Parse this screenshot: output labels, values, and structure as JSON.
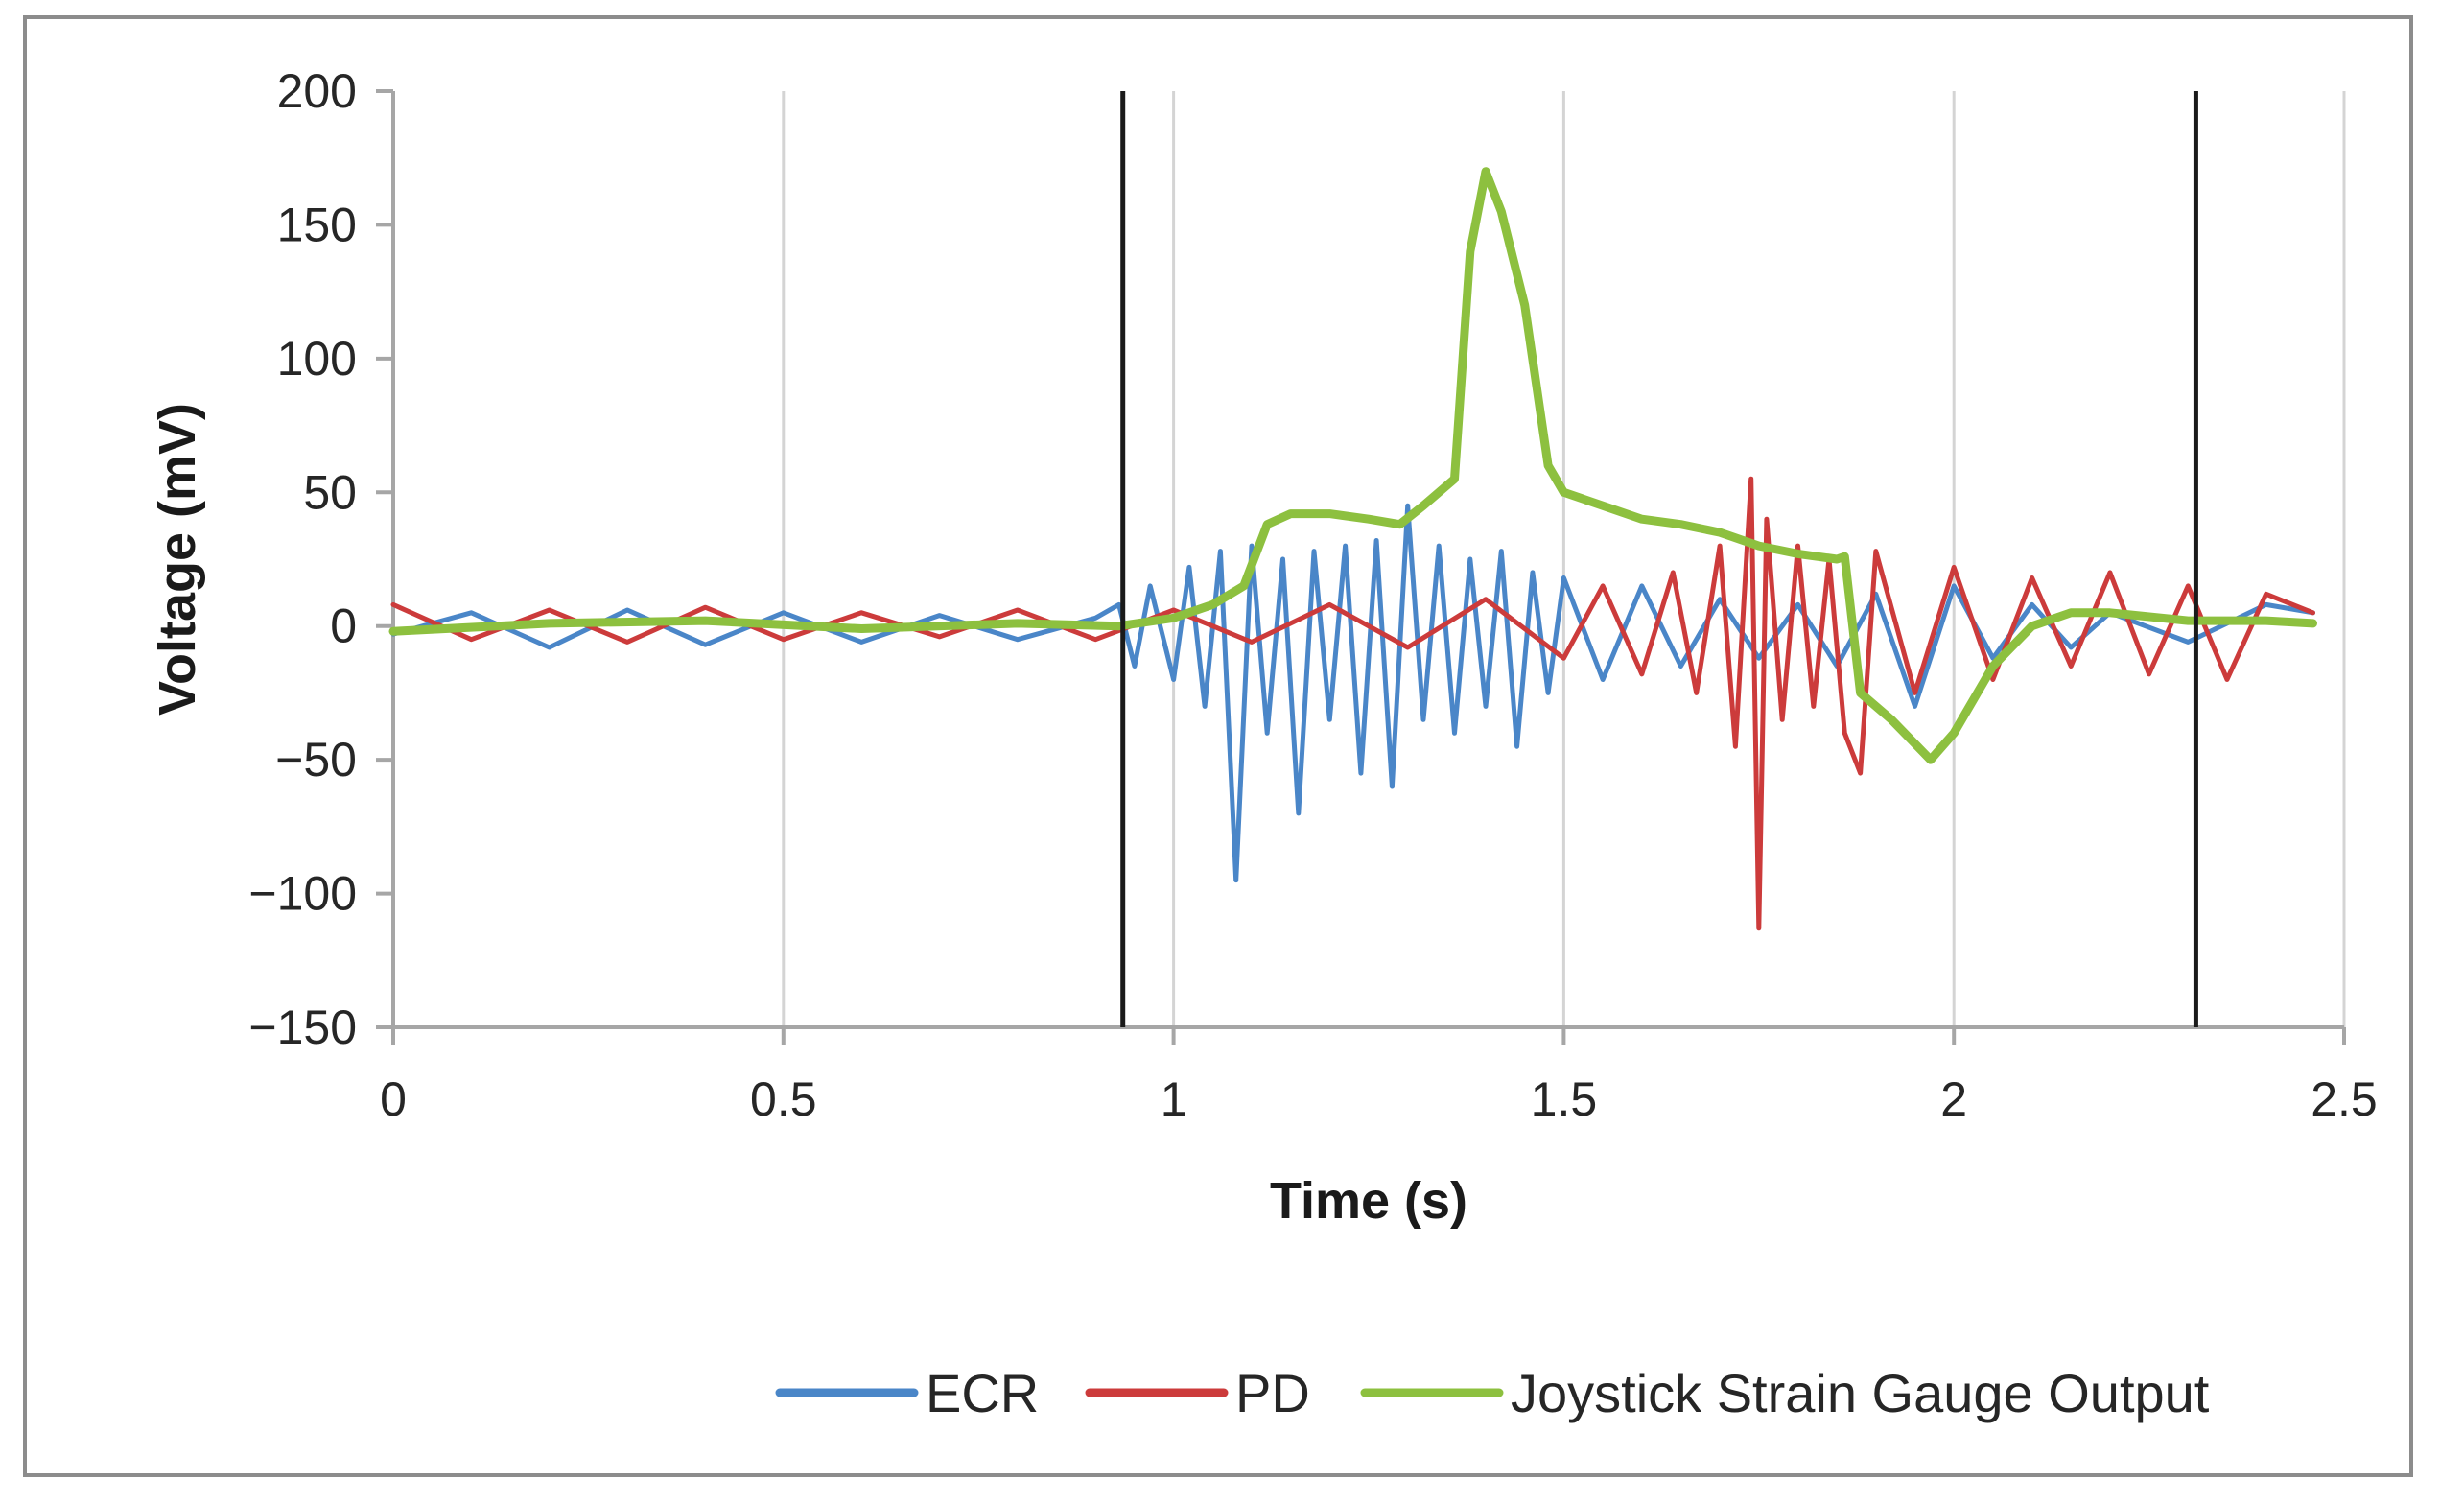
{
  "chart_data": {
    "type": "line",
    "xlabel": "Time (s)",
    "ylabel": "Voltage (mV)",
    "xlim": [
      0,
      2.5
    ],
    "ylim": [
      -150,
      200
    ],
    "x_ticks": [
      0,
      0.5,
      1,
      1.5,
      2,
      2.5
    ],
    "x_tick_labels": [
      "0",
      "0.5",
      "1",
      "1.5",
      "2",
      "2.5"
    ],
    "y_ticks": [
      -150,
      -100,
      -50,
      0,
      50,
      100,
      150,
      200
    ],
    "y_tick_labels": [
      "−150",
      "−100",
      "−50",
      "0",
      "50",
      "100",
      "150",
      "200"
    ],
    "grid": "vertical",
    "legend_position": "bottom-right",
    "markers": [
      {
        "name": "marker-line-start",
        "x": 0.935
      },
      {
        "name": "marker-line-end",
        "x": 2.31
      }
    ],
    "series": [
      {
        "name": "ECR",
        "color": "#4a86c8",
        "x": [
          0,
          0.1,
          0.2,
          0.3,
          0.4,
          0.5,
          0.6,
          0.7,
          0.8,
          0.9,
          0.93,
          0.95,
          0.97,
          1.0,
          1.02,
          1.04,
          1.06,
          1.08,
          1.1,
          1.12,
          1.14,
          1.16,
          1.18,
          1.2,
          1.22,
          1.24,
          1.26,
          1.28,
          1.3,
          1.32,
          1.34,
          1.36,
          1.38,
          1.4,
          1.42,
          1.44,
          1.46,
          1.48,
          1.5,
          1.55,
          1.6,
          1.65,
          1.7,
          1.75,
          1.8,
          1.85,
          1.9,
          1.95,
          2.0,
          2.05,
          2.1,
          2.15,
          2.2,
          2.3,
          2.4,
          2.46
        ],
        "y": [
          -3,
          5,
          -8,
          6,
          -7,
          5,
          -6,
          4,
          -5,
          3,
          8,
          -15,
          15,
          -20,
          22,
          -30,
          28,
          -95,
          30,
          -40,
          25,
          -70,
          28,
          -35,
          30,
          -55,
          32,
          -60,
          45,
          -35,
          30,
          -40,
          25,
          -30,
          28,
          -45,
          20,
          -25,
          18,
          -20,
          15,
          -15,
          10,
          -12,
          8,
          -15,
          12,
          -30,
          15,
          -12,
          8,
          -8,
          5,
          -6,
          8,
          5
        ]
      },
      {
        "name": "PD",
        "color": "#cc3b3b",
        "x": [
          0,
          0.1,
          0.2,
          0.3,
          0.4,
          0.5,
          0.6,
          0.7,
          0.8,
          0.9,
          1.0,
          1.1,
          1.2,
          1.3,
          1.4,
          1.5,
          1.55,
          1.6,
          1.64,
          1.67,
          1.7,
          1.72,
          1.74,
          1.75,
          1.76,
          1.78,
          1.8,
          1.82,
          1.84,
          1.86,
          1.88,
          1.9,
          1.95,
          2.0,
          2.05,
          2.1,
          2.15,
          2.2,
          2.25,
          2.3,
          2.35,
          2.4,
          2.46
        ],
        "y": [
          8,
          -5,
          6,
          -6,
          7,
          -5,
          5,
          -4,
          6,
          -5,
          6,
          -6,
          8,
          -8,
          10,
          -12,
          15,
          -18,
          20,
          -25,
          30,
          -45,
          55,
          -113,
          40,
          -35,
          30,
          -30,
          25,
          -40,
          -55,
          28,
          -25,
          22,
          -20,
          18,
          -15,
          20,
          -18,
          15,
          -20,
          12,
          5
        ]
      },
      {
        "name": "Joystick Strain Gauge Output",
        "color": "#8dc03f",
        "x": [
          0,
          0.2,
          0.4,
          0.6,
          0.8,
          0.93,
          1.0,
          1.05,
          1.09,
          1.12,
          1.15,
          1.2,
          1.25,
          1.29,
          1.32,
          1.36,
          1.38,
          1.4,
          1.42,
          1.45,
          1.48,
          1.5,
          1.55,
          1.6,
          1.65,
          1.7,
          1.75,
          1.8,
          1.85,
          1.86,
          1.88,
          1.92,
          1.97,
          2.0,
          2.05,
          2.1,
          2.15,
          2.2,
          2.3,
          2.4,
          2.46
        ],
        "y": [
          -2,
          1,
          2,
          -1,
          1,
          0,
          3,
          8,
          15,
          38,
          42,
          42,
          40,
          38,
          45,
          55,
          140,
          170,
          155,
          120,
          60,
          50,
          45,
          40,
          38,
          35,
          30,
          27,
          25,
          26,
          -25,
          -35,
          -50,
          -40,
          -15,
          0,
          5,
          5,
          2,
          2,
          1
        ]
      }
    ]
  }
}
